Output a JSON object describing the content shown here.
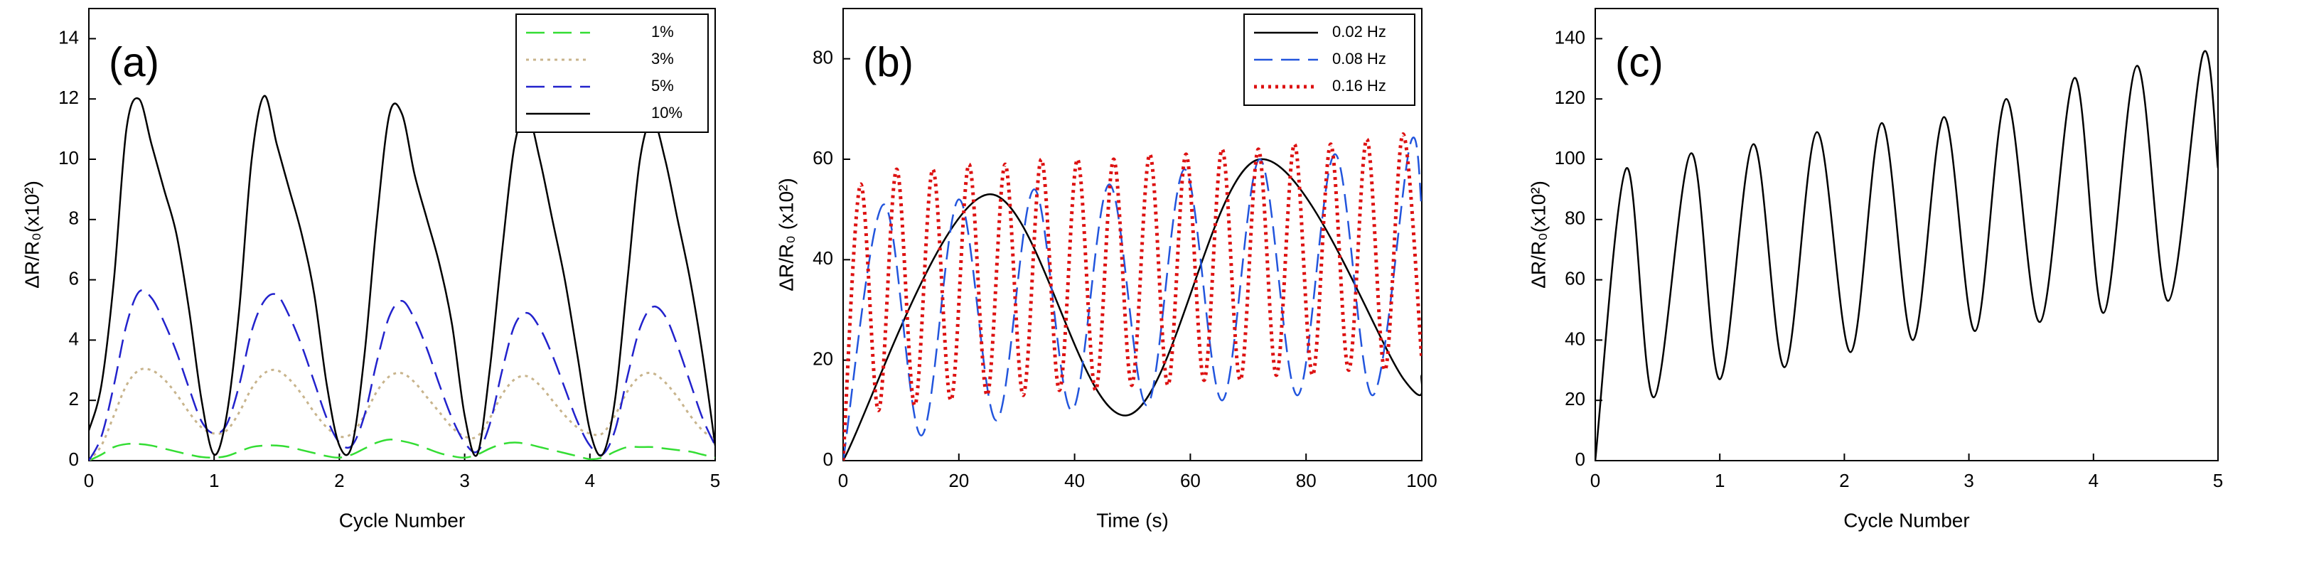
{
  "chart_data": [
    {
      "type": "line",
      "title": "(a)",
      "xlabel": "Cycle Number",
      "ylabel": "ΔR/R₀(x10²)",
      "xlim": [
        0,
        5
      ],
      "xticks": [
        0,
        1,
        2,
        3,
        4,
        5
      ],
      "ylim": [
        0,
        15
      ],
      "yticks": [
        0,
        2,
        4,
        6,
        8,
        10,
        12,
        14
      ],
      "legend": "upper right",
      "x": [
        0,
        0.1,
        0.2,
        0.3,
        0.4,
        0.5,
        0.6,
        0.7,
        0.8,
        0.9,
        1,
        1.1,
        1.2,
        1.3,
        1.4,
        1.5,
        1.6,
        1.7,
        1.8,
        1.9,
        2,
        2.1,
        2.2,
        2.3,
        2.4,
        2.5,
        2.6,
        2.7,
        2.8,
        2.9,
        3,
        3.1,
        3.2,
        3.3,
        3.4,
        3.5,
        3.6,
        3.7,
        3.8,
        3.9,
        4,
        4.1,
        4.2,
        4.3,
        4.4,
        4.5,
        4.6,
        4.7,
        4.8,
        4.9,
        5
      ],
      "series": [
        {
          "name": "1%",
          "color": "#33dd33",
          "style": "dashed",
          "values": [
            0,
            0.2,
            0.45,
            0.55,
            0.55,
            0.5,
            0.4,
            0.3,
            0.2,
            0.12,
            0.1,
            0.15,
            0.3,
            0.45,
            0.5,
            0.5,
            0.45,
            0.35,
            0.25,
            0.15,
            0.1,
            0.2,
            0.4,
            0.6,
            0.7,
            0.65,
            0.55,
            0.4,
            0.25,
            0.15,
            0.1,
            0.2,
            0.4,
            0.55,
            0.6,
            0.55,
            0.45,
            0.35,
            0.25,
            0.15,
            0.05,
            0.1,
            0.3,
            0.45,
            0.45,
            0.45,
            0.4,
            0.35,
            0.3,
            0.2,
            0.1
          ]
        },
        {
          "name": "3%",
          "color": "#c8b48c",
          "style": "dotted",
          "values": [
            0,
            0.5,
            1.5,
            2.5,
            3,
            3,
            2.7,
            2.2,
            1.6,
            1.1,
            0.9,
            1,
            1.6,
            2.4,
            2.9,
            3,
            2.7,
            2.2,
            1.6,
            1.1,
            0.8,
            0.9,
            1.5,
            2.3,
            2.8,
            2.9,
            2.6,
            2.1,
            1.6,
            1.1,
            0.8,
            0.8,
            1.4,
            2.2,
            2.7,
            2.8,
            2.5,
            2,
            1.5,
            1.1,
            0.9,
            0.9,
            1.5,
            2.3,
            2.8,
            2.9,
            2.6,
            2.1,
            1.5,
            1,
            0.7
          ]
        },
        {
          "name": "5%",
          "color": "#2222cc",
          "style": "dashed",
          "values": [
            0,
            0.8,
            2.5,
            4.5,
            5.6,
            5.4,
            4.6,
            3.6,
            2.4,
            1.3,
            0.9,
            1.2,
            2.5,
            4.3,
            5.3,
            5.5,
            4.8,
            3.8,
            2.6,
            1.4,
            0.6,
            0.5,
            1.5,
            3.3,
            4.8,
            5.3,
            4.7,
            3.7,
            2.5,
            1.4,
            0.6,
            0.3,
            1.2,
            3,
            4.5,
            4.9,
            4.4,
            3.5,
            2.4,
            1.3,
            0.5,
            0.2,
            1,
            2.8,
            4.4,
            5.1,
            4.8,
            3.8,
            2.6,
            1.4,
            0.5
          ]
        },
        {
          "name": "10%",
          "color": "#000000",
          "style": "solid",
          "values": [
            1,
            2.5,
            6,
            11,
            12,
            10.5,
            9,
            7.5,
            5,
            2,
            0.2,
            1.5,
            5,
            10,
            12.1,
            10.5,
            9,
            7.5,
            5.5,
            2.5,
            0.5,
            0.5,
            3.5,
            8,
            11.5,
            11.5,
            9.5,
            8,
            6.5,
            4.5,
            1.5,
            0.2,
            3,
            7,
            10.5,
            11.5,
            10,
            8,
            6,
            3.5,
            1,
            0.2,
            2,
            6,
            10,
            11.3,
            10,
            8,
            6,
            3.5,
            0.5
          ]
        }
      ]
    },
    {
      "type": "line",
      "title": "(b)",
      "xlabel": "Time (s)",
      "ylabel": "ΔR/R₀ (x10²)",
      "xlim": [
        0,
        100
      ],
      "xticks": [
        0,
        20,
        40,
        60,
        80,
        100
      ],
      "ylim": [
        0,
        90
      ],
      "yticks": [
        0,
        20,
        40,
        60,
        80
      ],
      "legend": "upper right",
      "series": [
        {
          "name": "0.02 Hz",
          "color": "#000000",
          "style": "solid",
          "x": [
            0,
            25,
            49,
            72,
            97,
            100
          ],
          "values": [
            0,
            53,
            9,
            60,
            16,
            17
          ]
        },
        {
          "name": "0.08 Hz",
          "color": "#2255dd",
          "style": "dashed",
          "x": [
            0,
            7,
            13.5,
            20,
            26.5,
            33,
            39.5,
            46,
            52.5,
            59,
            65.5,
            72,
            78.5,
            85,
            91.5,
            98,
            100
          ],
          "values": [
            0,
            51,
            5,
            52,
            8,
            54,
            10,
            55,
            11,
            58,
            12,
            60,
            13,
            61,
            13,
            63,
            50
          ]
        },
        {
          "name": "0.16 Hz",
          "color": "#dd1111",
          "style": "dotted",
          "x": [
            0,
            3,
            6.125,
            9.25,
            12.375,
            15.5,
            18.625,
            21.75,
            24.875,
            28,
            31.125,
            34.25,
            37.375,
            40.5,
            43.625,
            46.75,
            49.875,
            53,
            56.125,
            59.25,
            62.375,
            65.5,
            68.625,
            71.75,
            74.875,
            78,
            81.125,
            84.25,
            87.375,
            90.5,
            93.625,
            96.75,
            100
          ],
          "values": [
            0,
            55,
            10,
            58,
            11,
            58,
            12,
            59,
            13,
            59,
            13,
            60,
            14,
            60,
            14,
            60,
            15,
            61,
            15,
            61,
            16,
            62,
            16,
            62,
            17,
            63,
            17,
            63,
            18,
            64,
            18,
            65,
            20
          ]
        }
      ]
    },
    {
      "type": "line",
      "title": "(c)",
      "xlabel": "Cycle Number",
      "ylabel": "ΔR/R₀(x10²)",
      "xlim": [
        0,
        5
      ],
      "xticks": [
        0,
        1,
        2,
        3,
        4,
        5
      ],
      "ylim": [
        0,
        150
      ],
      "yticks": [
        0,
        20,
        40,
        60,
        80,
        100,
        120,
        140
      ],
      "series": [
        {
          "color": "#000000",
          "style": "solid",
          "x": [
            0,
            0.25,
            0.47,
            0.77,
            1,
            1.27,
            1.52,
            1.78,
            2.05,
            2.3,
            2.55,
            2.8,
            3.05,
            3.3,
            3.57,
            3.85,
            4.08,
            4.35,
            4.6,
            4.88,
            5
          ],
          "values": [
            0,
            97,
            21,
            102,
            27,
            105,
            31,
            109,
            36,
            112,
            40,
            114,
            43,
            120,
            46,
            127,
            49,
            131,
            53,
            135,
            97
          ]
        }
      ]
    }
  ]
}
